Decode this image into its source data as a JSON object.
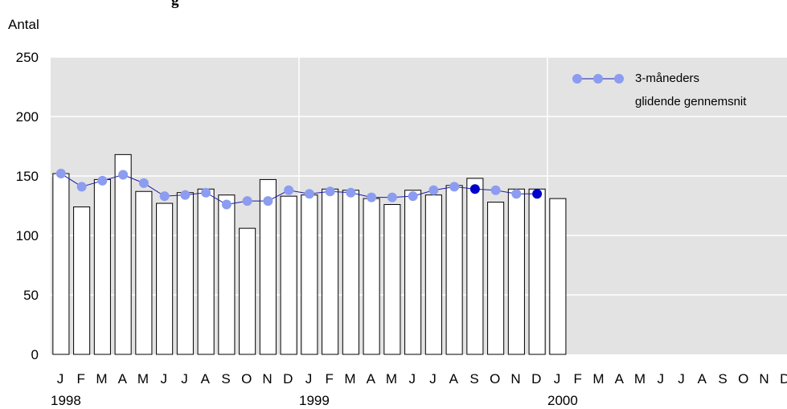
{
  "title_fragment": "g",
  "chart_data": {
    "type": "bar",
    "ylabel": "Antal",
    "ylim": [
      0,
      250
    ],
    "yticks": [
      0,
      50,
      100,
      150,
      200,
      250
    ],
    "grid": true,
    "legend_position": "top-right",
    "month_labels": [
      "J",
      "F",
      "M",
      "A",
      "M",
      "J",
      "J",
      "A",
      "S",
      "O",
      "N",
      "D",
      "J",
      "F",
      "M",
      "A",
      "M",
      "J",
      "J",
      "A",
      "S",
      "O",
      "N",
      "D",
      "J",
      "F",
      "M",
      "A",
      "M",
      "J",
      "J",
      "A",
      "S",
      "O",
      "N",
      "D"
    ],
    "year_labels": [
      {
        "label": "1998",
        "index": 0
      },
      {
        "label": "1999",
        "index": 12
      },
      {
        "label": "2000",
        "index": 24
      }
    ],
    "bars": [
      152,
      124,
      147,
      168,
      137,
      127,
      136,
      139,
      134,
      106,
      147,
      133,
      134,
      139,
      138,
      131,
      126,
      138,
      134,
      142,
      148,
      128,
      139,
      139,
      131
    ],
    "series": [
      {
        "name": "3-måneders glidende gennemsnit",
        "values": [
          152,
          141,
          146,
          151,
          144,
          133,
          134,
          136,
          126,
          129,
          129,
          138,
          135,
          137,
          136,
          132,
          132,
          133,
          138,
          141,
          139,
          138,
          135,
          135
        ],
        "highlight_indices": [
          20,
          23
        ]
      }
    ],
    "legend": {
      "line1": "3-måneders",
      "line2": "glidende gennemsnit"
    },
    "colors": {
      "plot_bg": "#e3e3e3",
      "grid": "#ffffff",
      "bar_fill": "#ffffff",
      "bar_stroke": "#000000",
      "line": "#1a1aa8",
      "marker": "#8c9cf0",
      "marker_highlight": "#0000cc"
    }
  }
}
